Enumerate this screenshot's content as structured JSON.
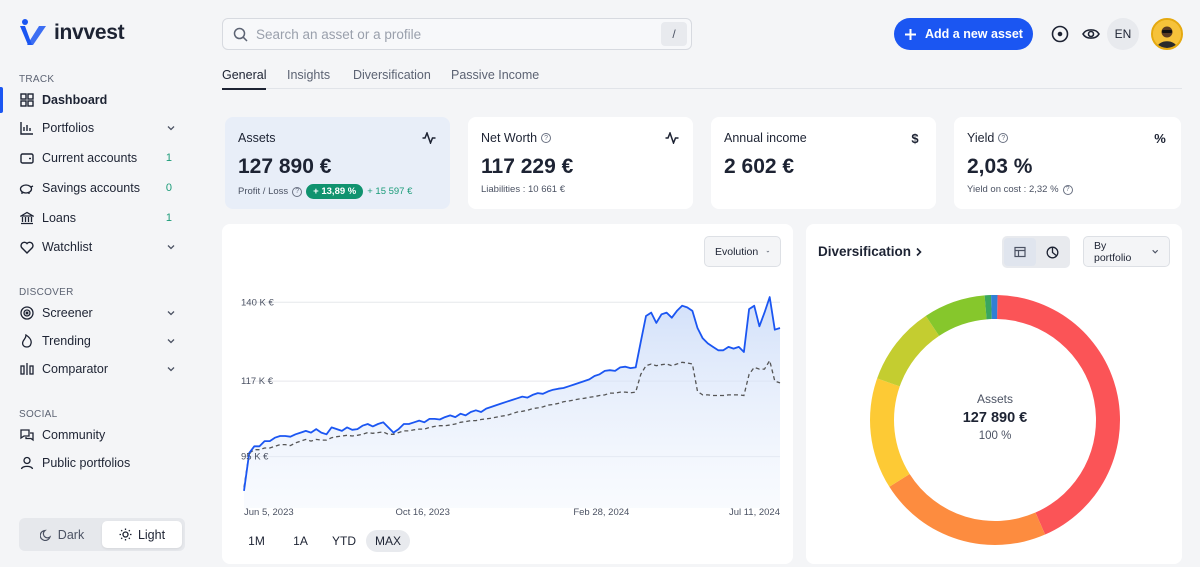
{
  "brand": {
    "name": "invvest"
  },
  "sidebar": {
    "track_label": "TRACK",
    "discover_label": "DISCOVER",
    "social_label": "SOCIAL",
    "items": [
      {
        "label": "Dashboard",
        "icon": "grid-icon",
        "active": true
      },
      {
        "label": "Portfolios",
        "icon": "bar-chart-icon",
        "expandable": true
      },
      {
        "label": "Current accounts",
        "icon": "wallet-icon",
        "count": "1"
      },
      {
        "label": "Savings accounts",
        "icon": "piggy-bank-icon",
        "count": "0"
      },
      {
        "label": "Loans",
        "icon": "bank-icon",
        "count": "1"
      },
      {
        "label": "Watchlist",
        "icon": "heart-icon",
        "expandable": true
      },
      {
        "label": "Screener",
        "icon": "target-icon",
        "expandable": true
      },
      {
        "label": "Trending",
        "icon": "flame-icon",
        "expandable": true
      },
      {
        "label": "Comparator",
        "icon": "compare-icon",
        "expandable": true
      },
      {
        "label": "Community",
        "icon": "chat-icon"
      },
      {
        "label": "Public portfolios",
        "icon": "user-icon"
      }
    ],
    "theme": {
      "dark": "Dark",
      "light": "Light",
      "selected": "light"
    }
  },
  "header": {
    "search_placeholder": "Search an asset or a profile",
    "search_value": "",
    "search_shortcut": "/",
    "add_button": "Add a new asset",
    "lang": "EN"
  },
  "tabs": [
    {
      "label": "General",
      "selected": true
    },
    {
      "label": "Insights"
    },
    {
      "label": "Diversification"
    },
    {
      "label": "Passive Income"
    }
  ],
  "cards": {
    "assets": {
      "title": "Assets",
      "value": "127 890 €",
      "sub_label": "Profit / Loss",
      "pct": "+ 13,89 %",
      "gain": "+ 15 597 €"
    },
    "net_worth": {
      "title": "Net Worth",
      "value": "117 229 €",
      "sub": "Liabilities : 10 661 €"
    },
    "annual_income": {
      "title": "Annual income",
      "value": "2 602 €",
      "icon_glyph": "$"
    },
    "yield": {
      "title": "Yield",
      "value": "2,03 %",
      "sub": "Yield on cost : 2,32 %",
      "icon_glyph": "%"
    }
  },
  "evolution": {
    "dropdown": "Evolution",
    "ranges": [
      "1M",
      "1A",
      "YTD",
      "MAX"
    ],
    "selected_range": "MAX"
  },
  "chart_data": {
    "type": "line",
    "x_tick_labels": [
      "Jun 5, 2023",
      "Oct 16, 2023",
      "Feb 28, 2024",
      "Jul 11, 2024"
    ],
    "y_tick_labels": [
      "140 K €",
      "117 K €",
      "95 K €"
    ],
    "y_ticks": [
      140000,
      117000,
      95000
    ],
    "ylim": [
      80000,
      150000
    ],
    "series": [
      {
        "style": "solid-area",
        "color": "#1b56f2",
        "values": [
          85000,
          96000,
          98000,
          98000,
          99500,
          99500,
          100500,
          101000,
          101000,
          100800,
          101500,
          102000,
          102500,
          102000,
          103000,
          102000,
          101500,
          103500,
          103000,
          102500,
          103500,
          102800,
          103000,
          104000,
          104500,
          103800,
          104500,
          105000,
          103500,
          102000,
          103000,
          104500,
          104500,
          105000,
          105500,
          105000,
          106000,
          106000,
          105800,
          106500,
          107000,
          106500,
          107500,
          107000,
          108000,
          108500,
          108000,
          109000,
          109500,
          110000,
          110500,
          111000,
          111500,
          112000,
          112500,
          112200,
          113000,
          113500,
          113300,
          114000,
          114500,
          114800,
          115000,
          115500,
          116000,
          116500,
          117000,
          117500,
          118500,
          119000,
          120000,
          120200,
          120000,
          121000,
          121200,
          120800,
          121000,
          128500,
          136000,
          137000,
          134000,
          136500,
          137000,
          135500,
          137500,
          139000,
          138500,
          137500,
          132500,
          129500,
          128000,
          127000,
          126000,
          126000,
          127000,
          126500,
          127000,
          125500,
          138000,
          139000,
          133000,
          137000,
          141500,
          132000,
          132500
        ]
      },
      {
        "style": "dashed",
        "color": "#555555",
        "values": [
          86000,
          96000,
          97000,
          97000,
          97500,
          97500,
          98000,
          98500,
          98500,
          98200,
          99000,
          99500,
          100000,
          99500,
          100000,
          99800,
          99800,
          100500,
          100800,
          101000,
          101200,
          101000,
          101200,
          101500,
          102000,
          101800,
          102000,
          102200,
          101500,
          101500,
          102000,
          102500,
          102500,
          102800,
          103000,
          103000,
          103500,
          103800,
          104000,
          104000,
          104200,
          104500,
          105000,
          105200,
          105500,
          105500,
          105800,
          106000,
          106200,
          106500,
          106800,
          107000,
          107500,
          108000,
          108200,
          108500,
          109000,
          109200,
          109500,
          110000,
          110200,
          110500,
          111000,
          111200,
          111500,
          111800,
          112000,
          112300,
          112500,
          112800,
          113000,
          113500,
          113500,
          113800,
          113800,
          113600,
          113800,
          119000,
          121500,
          122000,
          121500,
          121800,
          122000,
          121500,
          122000,
          122500,
          122300,
          122000,
          114000,
          113000,
          113000,
          112800,
          112800,
          112800,
          113000,
          113000,
          113000,
          112800,
          119000,
          121000,
          120500,
          120500,
          123000,
          117000,
          116500
        ]
      }
    ]
  },
  "diversification": {
    "title": "Diversification",
    "dropdown": "By portfolio",
    "center_label": "Assets",
    "center_value": "127 890 €",
    "center_pct": "100 %"
  },
  "donut_data": {
    "type": "pie",
    "slices": [
      {
        "value": 42.0,
        "color": "#fb5457"
      },
      {
        "value": 22.0,
        "color": "#fd8c3f"
      },
      {
        "value": 14.0,
        "color": "#fdca35"
      },
      {
        "value": 10.0,
        "color": "#c4cd30"
      },
      {
        "value": 7.8,
        "color": "#86c72c"
      },
      {
        "value": 0.8,
        "color": "#3aa65e"
      },
      {
        "value": 0.8,
        "color": "#2f7fd5"
      }
    ]
  }
}
